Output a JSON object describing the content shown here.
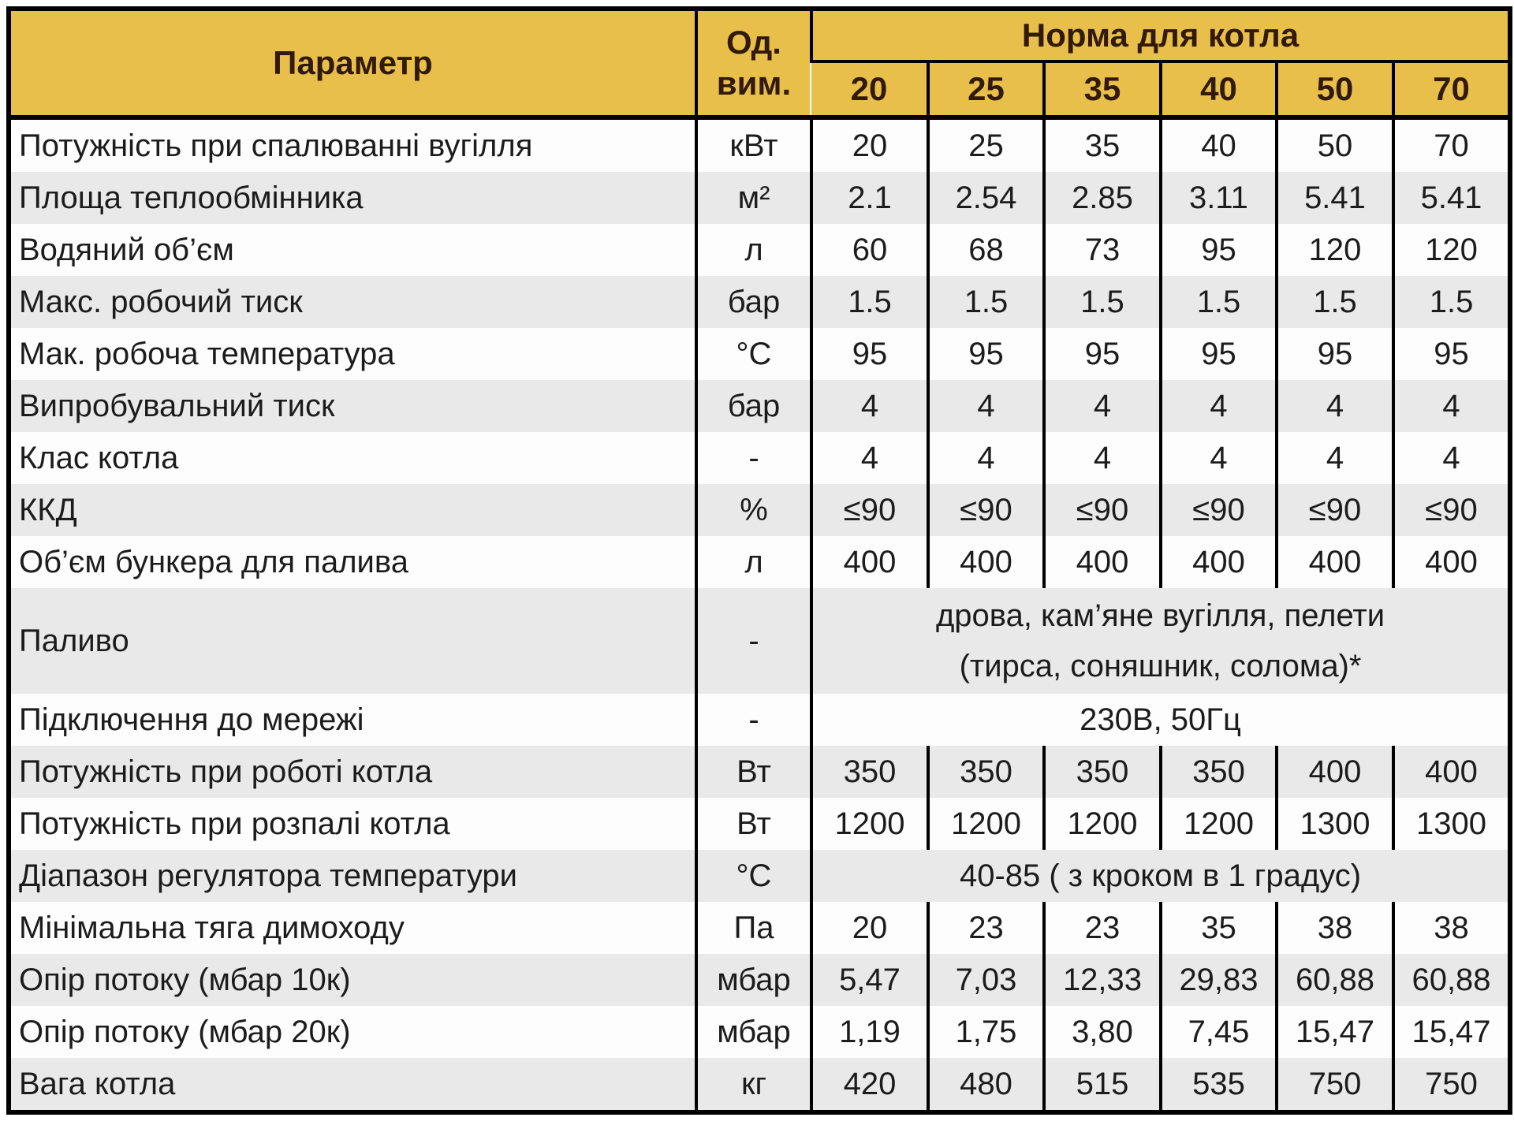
{
  "colors": {
    "header_bg": "#e9bf4c",
    "header_text": "#321a08",
    "row_white": "#fdfdfd",
    "row_gray": "#e9e9e9",
    "body_text": "#1c1c1c",
    "border": "#000000"
  },
  "header": {
    "param_label": "Параметр",
    "unit_line1": "Од.",
    "unit_line2": "вим.",
    "norm_label": "Норма для котла",
    "models": [
      "20",
      "25",
      "35",
      "40",
      "50",
      "70"
    ]
  },
  "rows": [
    {
      "param": "Потужність при спалюванні вугілля",
      "unit": "кВт",
      "values": [
        "20",
        "25",
        "35",
        "40",
        "50",
        "70"
      ]
    },
    {
      "param": "Площа теплообмінника",
      "unit": "м²",
      "values": [
        "2.1",
        "2.54",
        "2.85",
        "3.11",
        "5.41",
        "5.41"
      ]
    },
    {
      "param": "Водяний об’єм",
      "unit": "л",
      "values": [
        "60",
        "68",
        "73",
        "95",
        "120",
        "120"
      ]
    },
    {
      "param": "Макс. робочий тиск",
      "unit": "бар",
      "values": [
        "1.5",
        "1.5",
        "1.5",
        "1.5",
        "1.5",
        "1.5"
      ]
    },
    {
      "param": "Мак. робоча температура",
      "unit": "°С",
      "values": [
        "95",
        "95",
        "95",
        "95",
        "95",
        "95"
      ]
    },
    {
      "param": "Випробувальний тиск",
      "unit": "бар",
      "values": [
        "4",
        "4",
        "4",
        "4",
        "4",
        "4"
      ]
    },
    {
      "param": "Клас котла",
      "unit": "-",
      "values": [
        "4",
        "4",
        "4",
        "4",
        "4",
        "4"
      ]
    },
    {
      "param": "ККД",
      "unit": "%",
      "values": [
        "≤90",
        "≤90",
        "≤90",
        "≤90",
        "≤90",
        "≤90"
      ]
    },
    {
      "param": "Об’єм бункера для палива",
      "unit": "л",
      "values": [
        "400",
        "400",
        "400",
        "400",
        "400",
        "400"
      ]
    },
    {
      "param": "Паливо",
      "unit": "-",
      "merged": true,
      "tall": true,
      "lines": [
        "дрова, кам’яне вугілля, пелети",
        "(тирса, соняшник, солома)*"
      ]
    },
    {
      "param": "Підключення до мережі",
      "unit": "-",
      "merged": true,
      "lines": [
        "230В, 50Гц"
      ]
    },
    {
      "param": "Потужність при роботі котла",
      "unit": "Вт",
      "values": [
        "350",
        "350",
        "350",
        "350",
        "400",
        "400"
      ]
    },
    {
      "param": "Потужність при розпалі котла",
      "unit": "Вт",
      "values": [
        "1200",
        "1200",
        "1200",
        "1200",
        "1300",
        "1300"
      ]
    },
    {
      "param": "Діапазон регулятора температури",
      "unit": "°С",
      "merged": true,
      "lines": [
        "40-85 ( з кроком в 1 градус)"
      ]
    },
    {
      "param": "Мінімальна тяга димоходу",
      "unit": "Па",
      "values": [
        "20",
        "23",
        "23",
        "35",
        "38",
        "38"
      ]
    },
    {
      "param": "Опір потоку (мбар 10к)",
      "unit": "мбар",
      "values": [
        "5,47",
        "7,03",
        "12,33",
        "29,83",
        "60,88",
        "60,88"
      ]
    },
    {
      "param": "Опір потоку (мбар 20к)",
      "unit": "мбар",
      "values": [
        "1,19",
        "1,75",
        "3,80",
        "7,45",
        "15,47",
        "15,47"
      ]
    },
    {
      "param": "Вага котла",
      "unit": "кг",
      "values": [
        "420",
        "480",
        "515",
        "535",
        "750",
        "750"
      ]
    }
  ],
  "chart_data": {
    "type": "table",
    "title": "Норма для котла",
    "columns": [
      "Параметр",
      "Од. вим.",
      "20",
      "25",
      "35",
      "40",
      "50",
      "70"
    ],
    "rows": [
      [
        "Потужність при спалюванні вугілля",
        "кВт",
        "20",
        "25",
        "35",
        "40",
        "50",
        "70"
      ],
      [
        "Площа теплообмінника",
        "м²",
        "2.1",
        "2.54",
        "2.85",
        "3.11",
        "5.41",
        "5.41"
      ],
      [
        "Водяний об’єм",
        "л",
        "60",
        "68",
        "73",
        "95",
        "120",
        "120"
      ],
      [
        "Макс. робочий тиск",
        "бар",
        "1.5",
        "1.5",
        "1.5",
        "1.5",
        "1.5",
        "1.5"
      ],
      [
        "Мак. робоча температура",
        "°С",
        "95",
        "95",
        "95",
        "95",
        "95",
        "95"
      ],
      [
        "Випробувальний тиск",
        "бар",
        "4",
        "4",
        "4",
        "4",
        "4",
        "4"
      ],
      [
        "Клас котла",
        "-",
        "4",
        "4",
        "4",
        "4",
        "4",
        "4"
      ],
      [
        "ККД",
        "%",
        "≤90",
        "≤90",
        "≤90",
        "≤90",
        "≤90",
        "≤90"
      ],
      [
        "Об’єм бункера для палива",
        "л",
        "400",
        "400",
        "400",
        "400",
        "400",
        "400"
      ],
      [
        "Паливо",
        "-",
        "дрова, кам’яне вугілля, пелети (тирса, соняшник, солома)*"
      ],
      [
        "Підключення до мережі",
        "-",
        "230В, 50Гц"
      ],
      [
        "Потужність при роботі котла",
        "Вт",
        "350",
        "350",
        "350",
        "350",
        "400",
        "400"
      ],
      [
        "Потужність при розпалі котла",
        "Вт",
        "1200",
        "1200",
        "1200",
        "1200",
        "1300",
        "1300"
      ],
      [
        "Діапазон регулятора температури",
        "°С",
        "40-85 ( з кроком в 1 градус)"
      ],
      [
        "Мінімальна тяга димоходу",
        "Па",
        "20",
        "23",
        "23",
        "35",
        "38",
        "38"
      ],
      [
        "Опір потоку (мбар 10к)",
        "мбар",
        "5,47",
        "7,03",
        "12,33",
        "29,83",
        "60,88",
        "60,88"
      ],
      [
        "Опір потоку (мбар 20к)",
        "мбар",
        "1,19",
        "1,75",
        "3,80",
        "7,45",
        "15,47",
        "15,47"
      ],
      [
        "Вага котла",
        "кг",
        "420",
        "480",
        "515",
        "535",
        "750",
        "750"
      ]
    ]
  }
}
